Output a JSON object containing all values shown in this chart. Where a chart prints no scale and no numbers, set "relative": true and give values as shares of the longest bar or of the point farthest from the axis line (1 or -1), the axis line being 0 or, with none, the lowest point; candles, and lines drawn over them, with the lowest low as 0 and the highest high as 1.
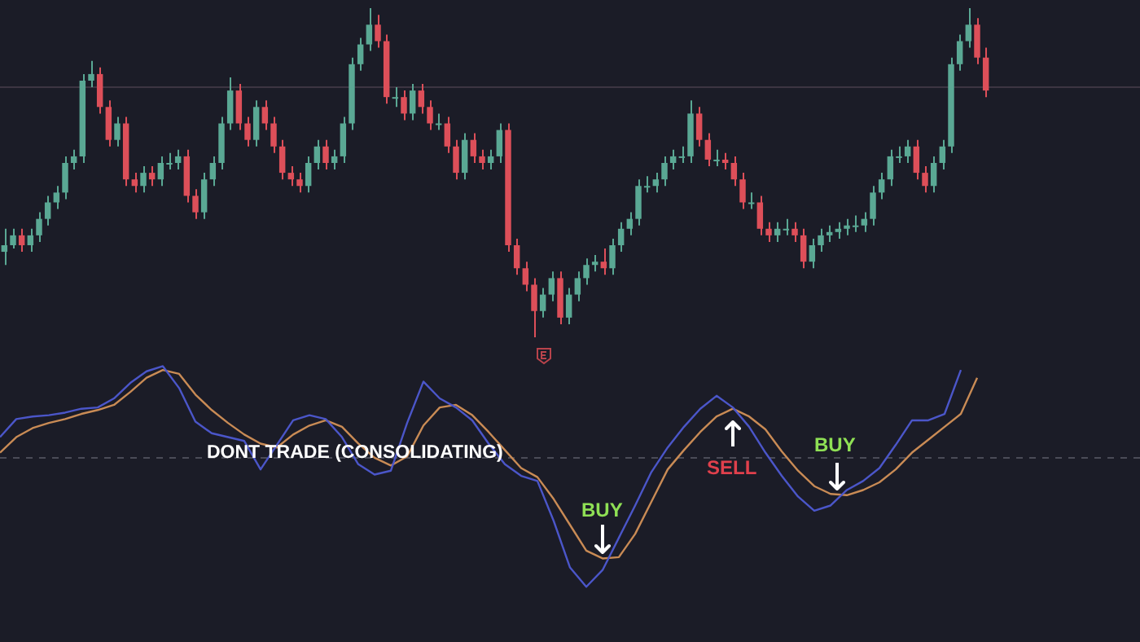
{
  "chart_data": [
    {
      "type": "candlestick",
      "relative": true,
      "categories": [
        null,
        null,
        null,
        null,
        null,
        null,
        null,
        null,
        null,
        null,
        null,
        null,
        null,
        null,
        null,
        null,
        null,
        null,
        null,
        null,
        null,
        null,
        null,
        null,
        null,
        null,
        null,
        null,
        null,
        null,
        null,
        null,
        null,
        null,
        null,
        null,
        null,
        null,
        null,
        null,
        null,
        null,
        null,
        null,
        null,
        null,
        null,
        null,
        null,
        null,
        null,
        null,
        null,
        null,
        null,
        null,
        null,
        null,
        null,
        null,
        null,
        null,
        null,
        null,
        null,
        null,
        null,
        null,
        null,
        null,
        null,
        null,
        null,
        null,
        null,
        null,
        null,
        null,
        null,
        null,
        null,
        null,
        null,
        null,
        null,
        null,
        null,
        null,
        null,
        null,
        null,
        null,
        null,
        null,
        null,
        null,
        null,
        null,
        null,
        null,
        null,
        null,
        null,
        null,
        null,
        null,
        null,
        null,
        null,
        null,
        null,
        null,
        null,
        null
      ],
      "ohlc": [
        [
          0.26,
          0.33,
          0.22,
          0.28
        ],
        [
          0.28,
          0.33,
          0.27,
          0.31
        ],
        [
          0.31,
          0.33,
          0.26,
          0.28
        ],
        [
          0.28,
          0.33,
          0.26,
          0.31
        ],
        [
          0.31,
          0.38,
          0.29,
          0.36
        ],
        [
          0.36,
          0.43,
          0.34,
          0.41
        ],
        [
          0.41,
          0.46,
          0.39,
          0.44
        ],
        [
          0.44,
          0.55,
          0.42,
          0.53
        ],
        [
          0.53,
          0.57,
          0.51,
          0.55
        ],
        [
          0.55,
          0.8,
          0.53,
          0.78
        ],
        [
          0.78,
          0.84,
          0.76,
          0.8
        ],
        [
          0.8,
          0.82,
          0.68,
          0.7
        ],
        [
          0.7,
          0.72,
          0.58,
          0.6
        ],
        [
          0.6,
          0.67,
          0.58,
          0.65
        ],
        [
          0.65,
          0.67,
          0.46,
          0.48
        ],
        [
          0.48,
          0.5,
          0.44,
          0.46
        ],
        [
          0.46,
          0.52,
          0.44,
          0.5
        ],
        [
          0.5,
          0.52,
          0.46,
          0.48
        ],
        [
          0.48,
          0.55,
          0.46,
          0.53
        ],
        [
          0.53,
          0.56,
          0.51,
          0.53
        ],
        [
          0.53,
          0.57,
          0.51,
          0.55
        ],
        [
          0.55,
          0.57,
          0.41,
          0.43
        ],
        [
          0.43,
          0.45,
          0.36,
          0.38
        ],
        [
          0.38,
          0.5,
          0.36,
          0.48
        ],
        [
          0.48,
          0.55,
          0.46,
          0.53
        ],
        [
          0.53,
          0.67,
          0.51,
          0.65
        ],
        [
          0.65,
          0.79,
          0.63,
          0.75
        ],
        [
          0.75,
          0.77,
          0.63,
          0.65
        ],
        [
          0.65,
          0.67,
          0.58,
          0.6
        ],
        [
          0.6,
          0.72,
          0.58,
          0.7
        ],
        [
          0.7,
          0.72,
          0.63,
          0.65
        ],
        [
          0.65,
          0.67,
          0.56,
          0.58
        ],
        [
          0.58,
          0.6,
          0.48,
          0.5
        ],
        [
          0.5,
          0.52,
          0.46,
          0.48
        ],
        [
          0.48,
          0.5,
          0.44,
          0.46
        ],
        [
          0.46,
          0.55,
          0.44,
          0.53
        ],
        [
          0.53,
          0.6,
          0.51,
          0.58
        ],
        [
          0.58,
          0.6,
          0.51,
          0.53
        ],
        [
          0.53,
          0.57,
          0.51,
          0.55
        ],
        [
          0.55,
          0.67,
          0.53,
          0.65
        ],
        [
          0.65,
          0.85,
          0.63,
          0.83
        ],
        [
          0.83,
          0.91,
          0.81,
          0.89
        ],
        [
          0.89,
          1,
          0.87,
          0.95
        ],
        [
          0.95,
          0.98,
          0.88,
          0.9
        ],
        [
          0.9,
          0.92,
          0.71,
          0.73
        ],
        [
          0.73,
          0.76,
          0.7,
          0.73
        ],
        [
          0.73,
          0.75,
          0.66,
          0.68
        ],
        [
          0.68,
          0.77,
          0.66,
          0.75
        ],
        [
          0.75,
          0.77,
          0.68,
          0.7
        ],
        [
          0.7,
          0.72,
          0.63,
          0.65
        ],
        [
          0.65,
          0.68,
          0.63,
          0.65
        ],
        [
          0.65,
          0.67,
          0.56,
          0.58
        ],
        [
          0.58,
          0.6,
          0.48,
          0.5
        ],
        [
          0.5,
          0.62,
          0.48,
          0.6
        ],
        [
          0.6,
          0.62,
          0.53,
          0.55
        ],
        [
          0.55,
          0.57,
          0.51,
          0.53
        ],
        [
          0.53,
          0.57,
          0.51,
          0.55
        ],
        [
          0.55,
          0.65,
          0.53,
          0.63
        ],
        [
          0.63,
          0.65,
          0.26,
          0.28
        ],
        [
          0.28,
          0.3,
          0.19,
          0.21
        ],
        [
          0.21,
          0.23,
          0.14,
          0.16
        ],
        [
          0.16,
          0.18,
          0,
          0.08
        ],
        [
          0.08,
          0.15,
          0.06,
          0.13
        ],
        [
          0.13,
          0.2,
          0.11,
          0.18
        ],
        [
          0.18,
          0.2,
          0.04,
          0.06
        ],
        [
          0.06,
          0.15,
          0.04,
          0.13
        ],
        [
          0.13,
          0.2,
          0.11,
          0.18
        ],
        [
          0.18,
          0.24,
          0.16,
          0.22
        ],
        [
          0.22,
          0.25,
          0.2,
          0.23
        ],
        [
          0.23,
          0.27,
          0.19,
          0.21
        ],
        [
          0.21,
          0.3,
          0.19,
          0.28
        ],
        [
          0.28,
          0.35,
          0.26,
          0.33
        ],
        [
          0.33,
          0.38,
          0.31,
          0.36
        ],
        [
          0.36,
          0.48,
          0.34,
          0.46
        ],
        [
          0.46,
          0.49,
          0.44,
          0.46
        ],
        [
          0.46,
          0.5,
          0.44,
          0.48
        ],
        [
          0.48,
          0.55,
          0.46,
          0.53
        ],
        [
          0.53,
          0.57,
          0.51,
          0.55
        ],
        [
          0.55,
          0.58,
          0.53,
          0.55
        ],
        [
          0.55,
          0.72,
          0.53,
          0.68
        ],
        [
          0.68,
          0.7,
          0.58,
          0.6
        ],
        [
          0.6,
          0.62,
          0.52,
          0.54
        ],
        [
          0.54,
          0.57,
          0.52,
          0.54
        ],
        [
          0.54,
          0.56,
          0.51,
          0.53
        ],
        [
          0.53,
          0.55,
          0.46,
          0.48
        ],
        [
          0.48,
          0.5,
          0.39,
          0.41
        ],
        [
          0.41,
          0.44,
          0.39,
          0.41
        ],
        [
          0.41,
          0.43,
          0.31,
          0.33
        ],
        [
          0.33,
          0.35,
          0.29,
          0.31
        ],
        [
          0.31,
          0.35,
          0.29,
          0.33
        ],
        [
          0.33,
          0.36,
          0.31,
          0.33
        ],
        [
          0.33,
          0.35,
          0.29,
          0.31
        ],
        [
          0.31,
          0.33,
          0.21,
          0.23
        ],
        [
          0.23,
          0.3,
          0.21,
          0.28
        ],
        [
          0.28,
          0.33,
          0.26,
          0.31
        ],
        [
          0.31,
          0.34,
          0.29,
          0.32
        ],
        [
          0.32,
          0.35,
          0.3,
          0.33
        ],
        [
          0.33,
          0.36,
          0.31,
          0.34
        ],
        [
          0.34,
          0.37,
          0.32,
          0.34
        ],
        [
          0.34,
          0.38,
          0.32,
          0.36
        ],
        [
          0.36,
          0.46,
          0.34,
          0.44
        ],
        [
          0.44,
          0.5,
          0.42,
          0.48
        ],
        [
          0.48,
          0.57,
          0.46,
          0.55
        ],
        [
          0.55,
          0.58,
          0.53,
          0.55
        ],
        [
          0.55,
          0.6,
          0.53,
          0.58
        ],
        [
          0.58,
          0.6,
          0.48,
          0.5
        ],
        [
          0.5,
          0.52,
          0.44,
          0.46
        ],
        [
          0.46,
          0.55,
          0.44,
          0.53
        ],
        [
          0.53,
          0.6,
          0.51,
          0.58
        ],
        [
          0.58,
          0.85,
          0.56,
          0.83
        ],
        [
          0.83,
          0.92,
          0.81,
          0.9
        ],
        [
          0.9,
          1,
          0.88,
          0.95
        ],
        [
          0.95,
          0.97,
          0.83,
          0.85
        ],
        [
          0.85,
          0.88,
          0.73,
          0.75
        ]
      ],
      "ref_lines": [
        {
          "axis": "y",
          "value": 0.76,
          "color": "#3d3542"
        }
      ]
    },
    {
      "type": "line",
      "relative": true,
      "categories": [
        null,
        null,
        null,
        null,
        null,
        null,
        null,
        null,
        null,
        null,
        null,
        null,
        null,
        null,
        null,
        null,
        null,
        null,
        null,
        null,
        null,
        null,
        null,
        null,
        null,
        null,
        null,
        null,
        null,
        null,
        null,
        null,
        null,
        null,
        null,
        null,
        null,
        null,
        null,
        null,
        null,
        null,
        null,
        null,
        null,
        null,
        null,
        null,
        null,
        null,
        null,
        null,
        null,
        null,
        null,
        null,
        null,
        null,
        null,
        null,
        null
      ],
      "series": [
        {
          "color": "#4b56c9",
          "values": [
            0.16,
            0.3,
            0.32,
            0.33,
            0.35,
            0.38,
            0.39,
            0.46,
            0.58,
            0.67,
            0.71,
            0.54,
            0.28,
            0.19,
            0.16,
            0.13,
            -0.09,
            0.1,
            0.29,
            0.33,
            0.3,
            0.16,
            -0.05,
            -0.13,
            -0.1,
            0.27,
            0.59,
            0.46,
            0.39,
            0.29,
            0.11,
            -0.05,
            -0.14,
            -0.18,
            -0.49,
            -0.85,
            -1,
            -0.87,
            -0.62,
            -0.37,
            -0.11,
            0.08,
            0.24,
            0.38,
            0.48,
            0.39,
            0.24,
            0.04,
            -0.14,
            -0.3,
            -0.41,
            -0.37,
            -0.25,
            -0.18,
            -0.08,
            0.1,
            0.29,
            0.29,
            0.34,
            0.68,
            null
          ]
        },
        {
          "color": "#c98b55",
          "values": [
            0.04,
            0.16,
            0.23,
            0.27,
            0.3,
            0.34,
            0.37,
            0.41,
            0.51,
            0.62,
            0.68,
            0.65,
            0.49,
            0.37,
            0.27,
            0.18,
            0.11,
            0.08,
            0.18,
            0.25,
            0.29,
            0.24,
            0.11,
            0,
            -0.06,
            0.01,
            0.25,
            0.39,
            0.41,
            0.33,
            0.2,
            0.06,
            -0.08,
            -0.15,
            -0.32,
            -0.52,
            -0.72,
            -0.78,
            -0.77,
            -0.59,
            -0.34,
            -0.09,
            0.06,
            0.2,
            0.32,
            0.38,
            0.32,
            0.22,
            0.05,
            -0.1,
            -0.22,
            -0.28,
            -0.29,
            -0.25,
            -0.19,
            -0.09,
            0.04,
            0.14,
            0.24,
            0.34,
            0.62
          ]
        }
      ],
      "ref_lines": [
        {
          "axis": "y",
          "value": 0,
          "line_style": "dashed",
          "color": "#4a4b57"
        }
      ],
      "annotations": [
        "DONT TRADE (CONSOLIDATING)",
        "BUY",
        "SELL",
        "BUY"
      ]
    }
  ]
}
